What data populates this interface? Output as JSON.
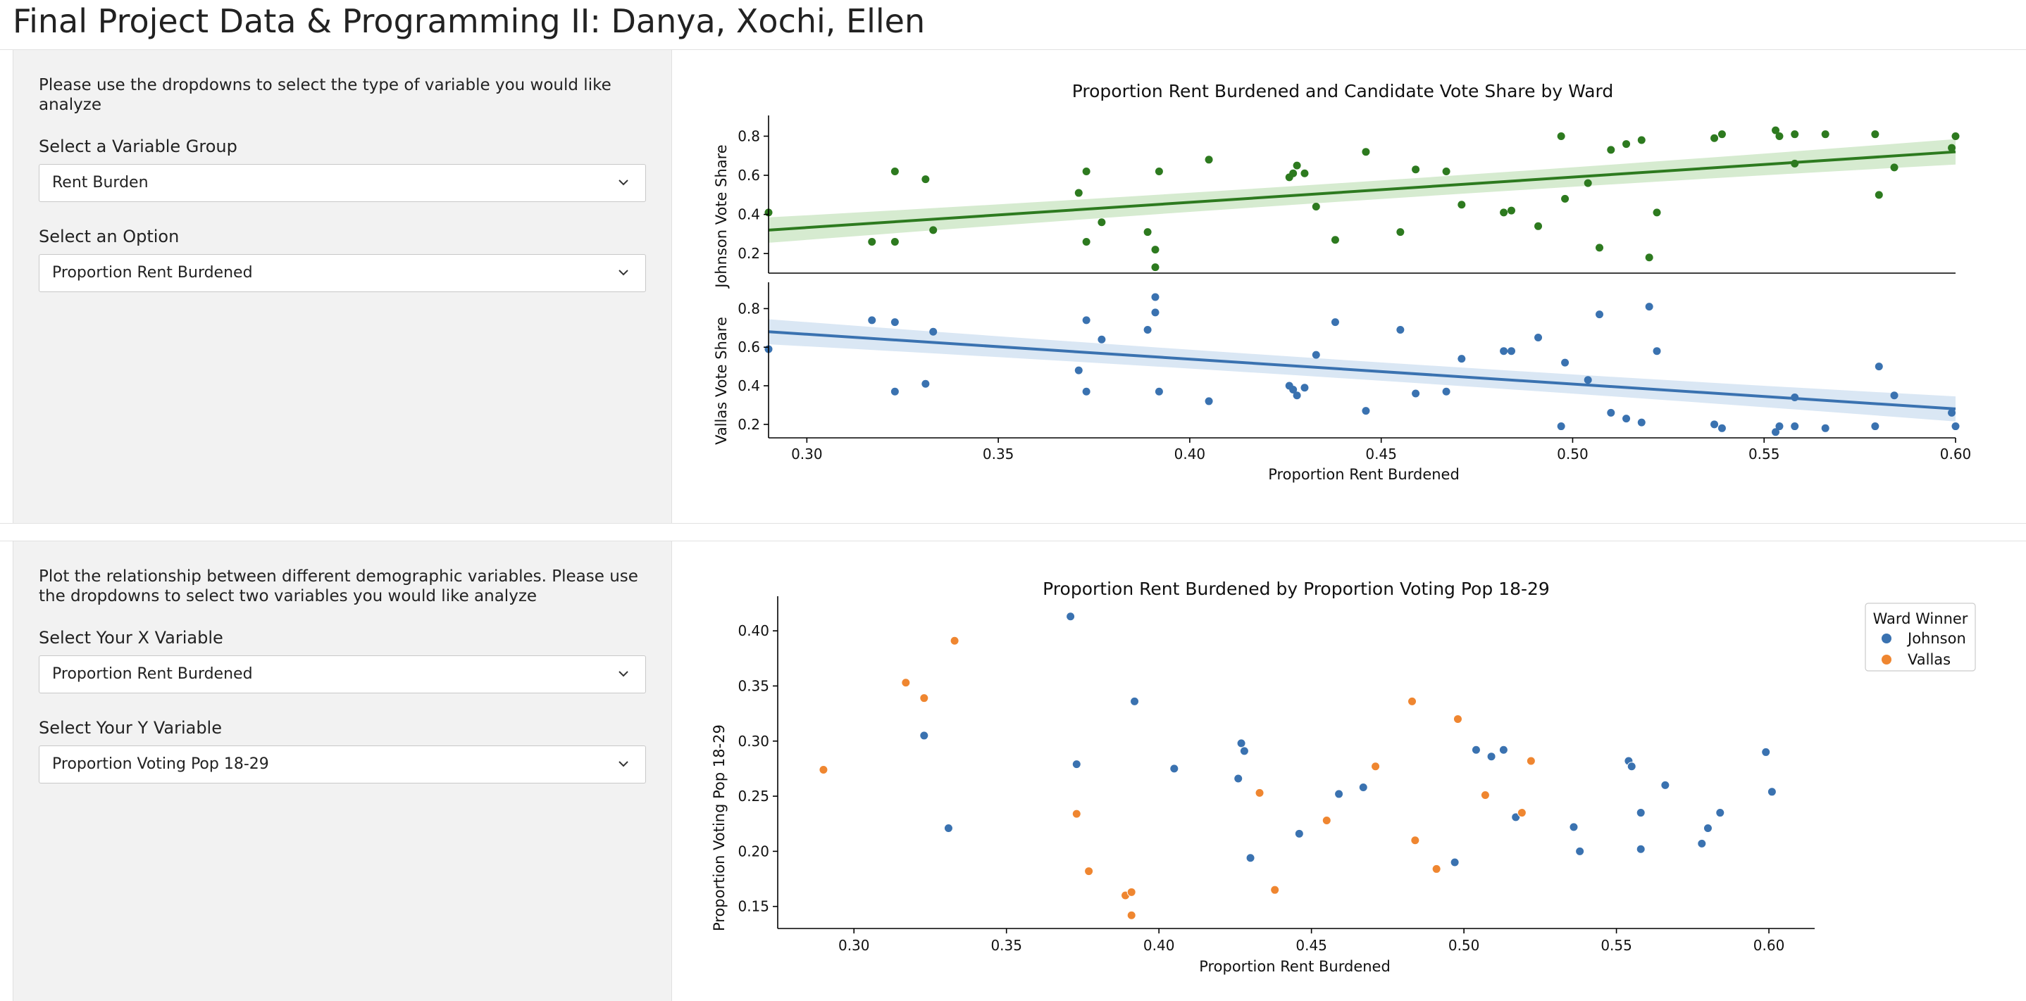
{
  "app": {
    "title": "Final Project Data & Programming II: Danya, Xochi, Ellen"
  },
  "panel1": {
    "intro": "Please use the dropdowns to select the type of variable you would like analyze",
    "group_label": "Select a Variable Group",
    "group_value": "Rent Burden",
    "option_label": "Select an Option",
    "option_value": "Proportion Rent Burdened"
  },
  "panel2": {
    "intro": "Plot the relationship between different demographic variables. Please use the dropdowns to select two variables you would like analyze",
    "x_label": "Select Your X Variable",
    "x_value": "Proportion Rent Burdened",
    "y_label": "Select Your Y Variable",
    "y_value": "Proportion Voting Pop 18-29"
  },
  "icons": {
    "dropdown": "chevron-down-icon"
  },
  "colors": {
    "johnson_top": "#2d7a1f",
    "johnson_band": "#cfe8c8",
    "vallas_top": "#3a72b0",
    "vallas_band": "#d3e3f2",
    "johnson_scatter": "#3a72b0",
    "vallas_scatter": "#ef8630"
  },
  "chart_data": [
    {
      "type": "scatter",
      "title": "Proportion Rent Burdened and Candidate Vote Share by Ward",
      "xlabel": "Proportion Rent Burdened",
      "xlim": [
        0.29,
        0.6
      ],
      "xticks": [
        0.3,
        0.35,
        0.4,
        0.45,
        0.5,
        0.55,
        0.6
      ],
      "subplots": [
        {
          "ylabel": "Johnson Vote Share",
          "ylim": [
            0.1,
            0.87
          ],
          "yticks": [
            0.2,
            0.4,
            0.6,
            0.8
          ],
          "regression": {
            "x": [
              0.29,
              0.6
            ],
            "y": [
              0.32,
              0.72
            ]
          },
          "points": [
            [
              0.29,
              0.41
            ],
            [
              0.317,
              0.26
            ],
            [
              0.323,
              0.26
            ],
            [
              0.323,
              0.62
            ],
            [
              0.331,
              0.58
            ],
            [
              0.333,
              0.32
            ],
            [
              0.371,
              0.51
            ],
            [
              0.373,
              0.26
            ],
            [
              0.373,
              0.62
            ],
            [
              0.377,
              0.36
            ],
            [
              0.389,
              0.31
            ],
            [
              0.391,
              0.22
            ],
            [
              0.391,
              0.13
            ],
            [
              0.392,
              0.62
            ],
            [
              0.405,
              0.68
            ],
            [
              0.426,
              0.59
            ],
            [
              0.427,
              0.61
            ],
            [
              0.428,
              0.65
            ],
            [
              0.43,
              0.61
            ],
            [
              0.433,
              0.44
            ],
            [
              0.438,
              0.27
            ],
            [
              0.446,
              0.72
            ],
            [
              0.455,
              0.31
            ],
            [
              0.459,
              0.63
            ],
            [
              0.467,
              0.62
            ],
            [
              0.471,
              0.45
            ],
            [
              0.482,
              0.41
            ],
            [
              0.484,
              0.42
            ],
            [
              0.491,
              0.34
            ],
            [
              0.497,
              0.8
            ],
            [
              0.498,
              0.48
            ],
            [
              0.504,
              0.56
            ],
            [
              0.507,
              0.23
            ],
            [
              0.51,
              0.73
            ],
            [
              0.514,
              0.76
            ],
            [
              0.518,
              0.78
            ],
            [
              0.52,
              0.18
            ],
            [
              0.522,
              0.41
            ],
            [
              0.537,
              0.79
            ],
            [
              0.539,
              0.81
            ],
            [
              0.553,
              0.83
            ],
            [
              0.554,
              0.8
            ],
            [
              0.558,
              0.81
            ],
            [
              0.558,
              0.66
            ],
            [
              0.566,
              0.81
            ],
            [
              0.579,
              0.81
            ],
            [
              0.58,
              0.5
            ],
            [
              0.584,
              0.64
            ],
            [
              0.599,
              0.74
            ],
            [
              0.6,
              0.8
            ]
          ]
        },
        {
          "ylabel": "Vallas Vote Share",
          "ylim": [
            0.13,
            0.9
          ],
          "yticks": [
            0.2,
            0.4,
            0.6,
            0.8
          ],
          "regression": {
            "x": [
              0.29,
              0.6
            ],
            "y": [
              0.68,
              0.28
            ]
          },
          "points": [
            [
              0.29,
              0.59
            ],
            [
              0.317,
              0.74
            ],
            [
              0.323,
              0.73
            ],
            [
              0.323,
              0.37
            ],
            [
              0.331,
              0.41
            ],
            [
              0.333,
              0.68
            ],
            [
              0.371,
              0.48
            ],
            [
              0.373,
              0.74
            ],
            [
              0.373,
              0.37
            ],
            [
              0.377,
              0.64
            ],
            [
              0.389,
              0.69
            ],
            [
              0.391,
              0.78
            ],
            [
              0.391,
              0.86
            ],
            [
              0.392,
              0.37
            ],
            [
              0.405,
              0.32
            ],
            [
              0.426,
              0.4
            ],
            [
              0.427,
              0.38
            ],
            [
              0.428,
              0.35
            ],
            [
              0.43,
              0.39
            ],
            [
              0.433,
              0.56
            ],
            [
              0.438,
              0.73
            ],
            [
              0.446,
              0.27
            ],
            [
              0.455,
              0.69
            ],
            [
              0.459,
              0.36
            ],
            [
              0.467,
              0.37
            ],
            [
              0.471,
              0.54
            ],
            [
              0.482,
              0.58
            ],
            [
              0.484,
              0.58
            ],
            [
              0.491,
              0.65
            ],
            [
              0.497,
              0.19
            ],
            [
              0.498,
              0.52
            ],
            [
              0.504,
              0.43
            ],
            [
              0.507,
              0.77
            ],
            [
              0.51,
              0.26
            ],
            [
              0.514,
              0.23
            ],
            [
              0.518,
              0.21
            ],
            [
              0.52,
              0.81
            ],
            [
              0.522,
              0.58
            ],
            [
              0.537,
              0.2
            ],
            [
              0.539,
              0.18
            ],
            [
              0.553,
              0.16
            ],
            [
              0.554,
              0.19
            ],
            [
              0.558,
              0.19
            ],
            [
              0.558,
              0.34
            ],
            [
              0.566,
              0.18
            ],
            [
              0.579,
              0.19
            ],
            [
              0.58,
              0.5
            ],
            [
              0.584,
              0.35
            ],
            [
              0.599,
              0.26
            ],
            [
              0.6,
              0.19
            ]
          ]
        }
      ]
    },
    {
      "type": "scatter",
      "title": "Proportion Rent Burdened by Proportion Voting Pop 18-29",
      "xlabel": "Proportion Rent Burdened",
      "ylabel": "Proportion Voting Pop 18-29",
      "xlim": [
        0.275,
        0.615
      ],
      "ylim": [
        0.13,
        0.425
      ],
      "xticks": [
        0.3,
        0.35,
        0.4,
        0.45,
        0.5,
        0.55,
        0.6
      ],
      "yticks": [
        0.15,
        0.2,
        0.25,
        0.3,
        0.35,
        0.4
      ],
      "legend": {
        "title": "Ward Winner",
        "placement": "top-right",
        "entries": [
          "Johnson",
          "Vallas"
        ]
      },
      "series": [
        {
          "name": "Johnson",
          "points": [
            [
              0.323,
              0.305
            ],
            [
              0.331,
              0.221
            ],
            [
              0.371,
              0.413
            ],
            [
              0.373,
              0.279
            ],
            [
              0.392,
              0.336
            ],
            [
              0.405,
              0.275
            ],
            [
              0.426,
              0.266
            ],
            [
              0.427,
              0.298
            ],
            [
              0.428,
              0.291
            ],
            [
              0.43,
              0.194
            ],
            [
              0.446,
              0.216
            ],
            [
              0.459,
              0.252
            ],
            [
              0.467,
              0.258
            ],
            [
              0.497,
              0.19
            ],
            [
              0.504,
              0.292
            ],
            [
              0.509,
              0.286
            ],
            [
              0.513,
              0.292
            ],
            [
              0.517,
              0.231
            ],
            [
              0.536,
              0.222
            ],
            [
              0.538,
              0.2
            ],
            [
              0.554,
              0.282
            ],
            [
              0.555,
              0.277
            ],
            [
              0.558,
              0.235
            ],
            [
              0.558,
              0.202
            ],
            [
              0.566,
              0.26
            ],
            [
              0.578,
              0.207
            ],
            [
              0.58,
              0.221
            ],
            [
              0.584,
              0.235
            ],
            [
              0.599,
              0.29
            ],
            [
              0.601,
              0.254
            ]
          ]
        },
        {
          "name": "Vallas",
          "points": [
            [
              0.29,
              0.274
            ],
            [
              0.317,
              0.353
            ],
            [
              0.323,
              0.339
            ],
            [
              0.333,
              0.391
            ],
            [
              0.373,
              0.234
            ],
            [
              0.377,
              0.182
            ],
            [
              0.389,
              0.16
            ],
            [
              0.391,
              0.163
            ],
            [
              0.391,
              0.142
            ],
            [
              0.433,
              0.253
            ],
            [
              0.438,
              0.165
            ],
            [
              0.455,
              0.228
            ],
            [
              0.471,
              0.277
            ],
            [
              0.483,
              0.336
            ],
            [
              0.484,
              0.21
            ],
            [
              0.491,
              0.184
            ],
            [
              0.498,
              0.32
            ],
            [
              0.507,
              0.251
            ],
            [
              0.519,
              0.235
            ],
            [
              0.522,
              0.282
            ]
          ]
        }
      ]
    }
  ]
}
